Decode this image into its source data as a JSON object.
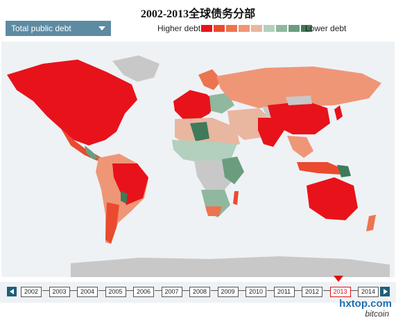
{
  "title": "2002-2013全球债务分部",
  "metric_select": {
    "selected": "Total public debt"
  },
  "legend": {
    "high_label": "Higher debt",
    "low_label": "Lower debt",
    "colors": [
      "#e8121b",
      "#ea4a2f",
      "#ed7450",
      "#ef9677",
      "#e9b6a0",
      "#b3cfbd",
      "#8fb89f",
      "#6a9d7e",
      "#3f7a5b"
    ]
  },
  "timeline": {
    "years": [
      "2002",
      "2003",
      "2004",
      "2005",
      "2006",
      "2007",
      "2008",
      "2009",
      "2010",
      "2011",
      "2012",
      "2013",
      "2014"
    ],
    "selected_year": "2013"
  },
  "watermark": {
    "site": "hxtop.com",
    "brand": "bitcoin"
  }
}
